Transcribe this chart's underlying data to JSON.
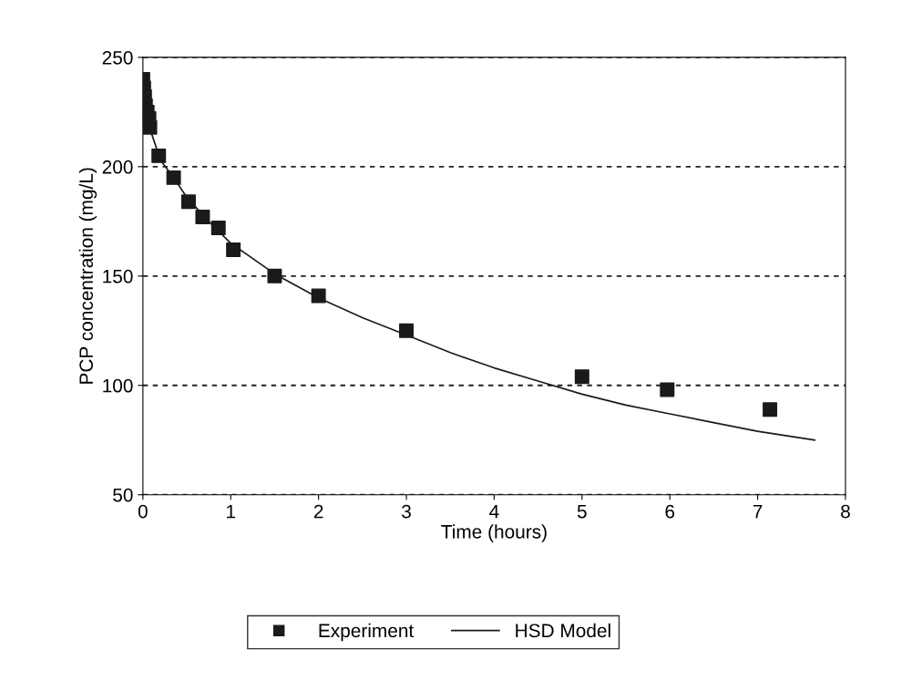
{
  "chart_data": {
    "type": "scatter",
    "xlabel": "Time (hours)",
    "ylabel": "PCP concentration (mg/L)",
    "xlim": [
      0,
      8
    ],
    "ylim": [
      50,
      250
    ],
    "xticks": [
      0,
      1,
      2,
      3,
      4,
      5,
      6,
      7,
      8
    ],
    "yticks": [
      50,
      100,
      150,
      200,
      250
    ],
    "grid": "y",
    "legend": "bottom",
    "series": [
      {
        "name": "Experiment",
        "marker": "square",
        "color": "#1a1a1a",
        "x": [
          0,
          0.01,
          0.02,
          0.03,
          0.05,
          0.07,
          0.08,
          0.18,
          0.35,
          0.52,
          0.68,
          0.86,
          1.03,
          1.5,
          2.0,
          3.0,
          5.0,
          5.97,
          7.14
        ],
        "values": [
          240,
          236,
          232,
          228,
          225,
          222,
          218,
          205,
          195,
          184,
          177,
          172,
          162,
          150,
          141,
          125,
          104,
          98,
          89
        ]
      },
      {
        "name": "HSD Model",
        "type": "line",
        "marker": "none",
        "line_style": "solid",
        "color": "#1a1a1a",
        "x": [
          0.02,
          0.05,
          0.1,
          0.2,
          0.35,
          0.5,
          0.75,
          1,
          1.5,
          2,
          2.5,
          3,
          3.5,
          4,
          4.5,
          5,
          5.5,
          6,
          6.5,
          7,
          7.65
        ],
        "values": [
          235,
          225,
          215,
          203,
          195,
          186,
          175,
          165,
          151,
          140,
          131,
          123,
          115,
          108,
          102,
          96,
          91,
          87,
          83,
          79,
          75
        ]
      }
    ]
  }
}
